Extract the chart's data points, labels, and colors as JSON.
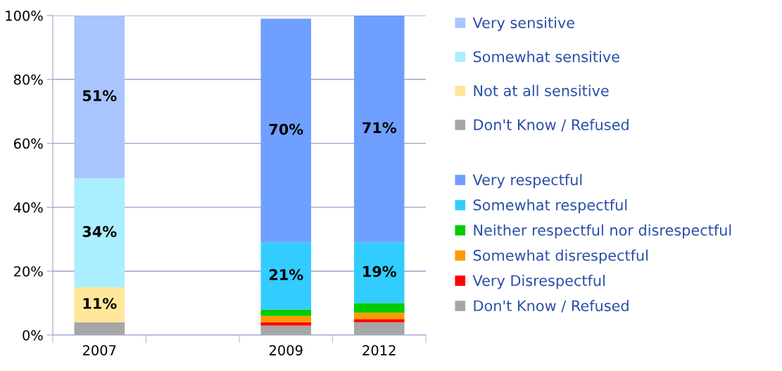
{
  "chart_data": {
    "type": "bar",
    "stacked": true,
    "categories": [
      "2007",
      null,
      "2009",
      "2012"
    ],
    "series": [
      {
        "name": "Don't Know / Refused",
        "color": "#a6a6a6",
        "values": [
          null,
          null,
          3,
          4
        ]
      },
      {
        "name": "Very Disrespectful",
        "color": "#ff0000",
        "values": [
          null,
          null,
          1,
          1
        ]
      },
      {
        "name": "Somewhat disrespectful",
        "color": "#ff9900",
        "values": [
          null,
          null,
          2,
          2
        ]
      },
      {
        "name": "Neither respectful nor disrespectful",
        "color": "#00cc00",
        "values": [
          null,
          null,
          2,
          3
        ]
      },
      {
        "name": "Somewhat respectful",
        "color": "#33ccff",
        "values": [
          null,
          null,
          21,
          19
        ],
        "value_labels": [
          null,
          null,
          "21%",
          "19%"
        ]
      },
      {
        "name": "Very respectful",
        "color": "#6f9fff",
        "values": [
          null,
          null,
          70,
          71
        ],
        "value_labels": [
          null,
          null,
          "70%",
          "71%"
        ]
      },
      {
        "name": "Don't Know / Refused",
        "color": "#a6a6a6",
        "values": [
          4,
          null,
          null,
          null
        ]
      },
      {
        "name": "Not at all sensitive",
        "color": "#ffe699",
        "values": [
          11,
          null,
          null,
          null
        ],
        "value_labels": [
          "11%",
          null,
          null,
          null
        ]
      },
      {
        "name": "Somewhat sensitive",
        "color": "#aaeeff",
        "values": [
          34,
          null,
          null,
          null
        ],
        "value_labels": [
          "34%",
          null,
          null,
          null
        ]
      },
      {
        "name": "Very sensitive",
        "color": "#a9c4fe",
        "values": [
          51,
          null,
          null,
          null
        ],
        "value_labels": [
          "51%",
          null,
          null,
          null
        ]
      }
    ],
    "ylim": [
      0,
      100
    ],
    "yticks": [
      {
        "value": 0,
        "label": "0%"
      },
      {
        "value": 20,
        "label": "20%"
      },
      {
        "value": 40,
        "label": "40%"
      },
      {
        "value": 60,
        "label": "60%"
      },
      {
        "value": 80,
        "label": "80%"
      },
      {
        "value": 100,
        "label": "100%"
      }
    ],
    "grid": "y",
    "legend": "right"
  }
}
